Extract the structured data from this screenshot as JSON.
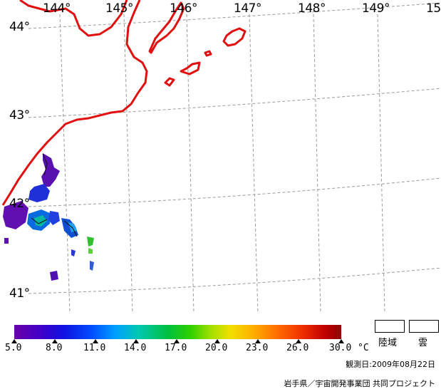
{
  "map": {
    "lon_labels": [
      "144°",
      "145°",
      "146°",
      "147°",
      "148°",
      "149°",
      "15"
    ],
    "lat_labels": [
      "44°",
      "43°",
      "42°",
      "41°"
    ],
    "coast_color": "#e01010",
    "grid_color": "#9a9a9a"
  },
  "colorbar": {
    "ticks": [
      "5.0",
      "8.0",
      "11.0",
      "14.0",
      "17.0",
      "20.0",
      "23.0",
      "26.0",
      "30.0"
    ],
    "unit": "°C"
  },
  "legend": {
    "land": "陸域",
    "cloud": "雲"
  },
  "observation": "観測日:2009年08月22日",
  "credit": "岩手県／宇宙開発事業団 共同プロジェクト"
}
